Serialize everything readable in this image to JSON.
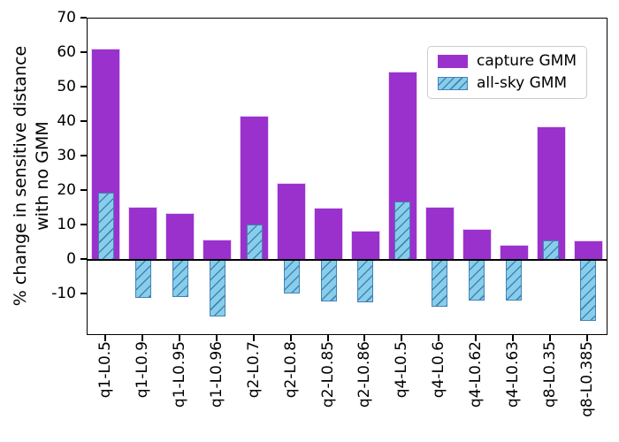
{
  "chart_data": {
    "type": "bar",
    "title": "",
    "xlabel": "",
    "ylabel": "% change in sensitive distance\nwith no GMM",
    "categories": [
      "q1-L0.5",
      "q1-L0.9",
      "q1-L0.95",
      "q1-L0.96",
      "q2-L0.7",
      "q2-L0.8",
      "q2-L0.85",
      "q2-L0.86",
      "q4-L0.5",
      "q4-L0.6",
      "q4-L0.62",
      "q4-L0.63",
      "q8-L0.35",
      "q8-L0.385"
    ],
    "series": [
      {
        "name": "capture GMM",
        "type": "solid",
        "color": "#9a31cd",
        "edge_color": "#e9d2f4",
        "values": [
          61.3,
          15.4,
          13.7,
          6.0,
          41.7,
          22.3,
          15.1,
          8.6,
          54.6,
          15.4,
          9.0,
          4.5,
          38.7,
          5.6
        ]
      },
      {
        "name": "all-sky GMM",
        "type": "hatched",
        "color": "#87ceeb",
        "edge_color": "#4682b4",
        "hatch": "/",
        "values": [
          19.4,
          -10.9,
          -10.7,
          -16.5,
          10.4,
          -9.8,
          -12.0,
          -12.4,
          17.0,
          -13.5,
          -11.7,
          -11.7,
          5.6,
          -17.7
        ]
      }
    ],
    "yticks": [
      70,
      60,
      50,
      40,
      30,
      20,
      10,
      0,
      -10
    ],
    "ylim": [
      -21.5,
      70
    ],
    "grid": false,
    "zero_line": true,
    "zero_line_color": "#000000",
    "legend_position": "upper right",
    "background_color": "#ffffff"
  }
}
